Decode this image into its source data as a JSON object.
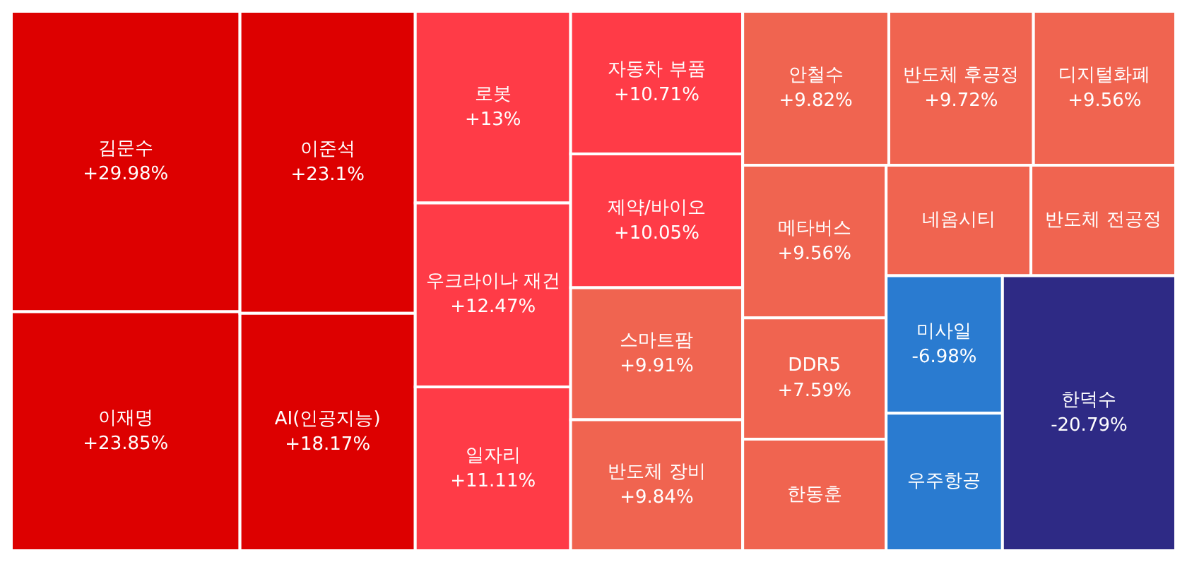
{
  "chart_data": {
    "type": "other",
    "categories": [
      "김문수",
      "이재명",
      "이준석",
      "AI(인공지능)",
      "로봇",
      "우크라이나 재건",
      "일자리",
      "자동차 부품",
      "제약/바이오",
      "스마트팜",
      "반도체 장비",
      "안철수",
      "반도체 후공정",
      "디지털화폐",
      "메타버스",
      "DDR5",
      "한동훈",
      "네옴시티",
      "반도체 전공정",
      "미사일",
      "우주항공",
      "한덕수"
    ],
    "values": [
      29.98,
      23.85,
      23.1,
      18.17,
      13,
      12.47,
      11.11,
      10.71,
      10.05,
      9.91,
      9.84,
      9.82,
      9.72,
      9.56,
      9.56,
      7.59,
      null,
      null,
      null,
      -6.98,
      null,
      -20.79
    ],
    "value_labels": [
      "+29.98%",
      "+23.85%",
      "+23.1%",
      "+18.17%",
      "+13%",
      "+12.47%",
      "+11.11%",
      "+10.71%",
      "+10.05%",
      "+9.91%",
      "+9.84%",
      "+9.82%",
      "+9.72%",
      "+9.56%",
      "+9.56%",
      "+7.59%",
      null,
      null,
      null,
      "-6.98%",
      null,
      "-20.79%"
    ],
    "colors": [
      "#dd0000",
      "#dd0000",
      "#dd0000",
      "#dd0000",
      "#ff3b47",
      "#ff3b47",
      "#ff3b47",
      "#ff3b47",
      "#ff3b47",
      "#f06450",
      "#f06450",
      "#f06450",
      "#f06450",
      "#f06450",
      "#f06450",
      "#f06450",
      "#f06450",
      "#f06450",
      "#f06450",
      "#2a7bd0",
      "#2a7bd0",
      "#2e2a85"
    ]
  }
}
